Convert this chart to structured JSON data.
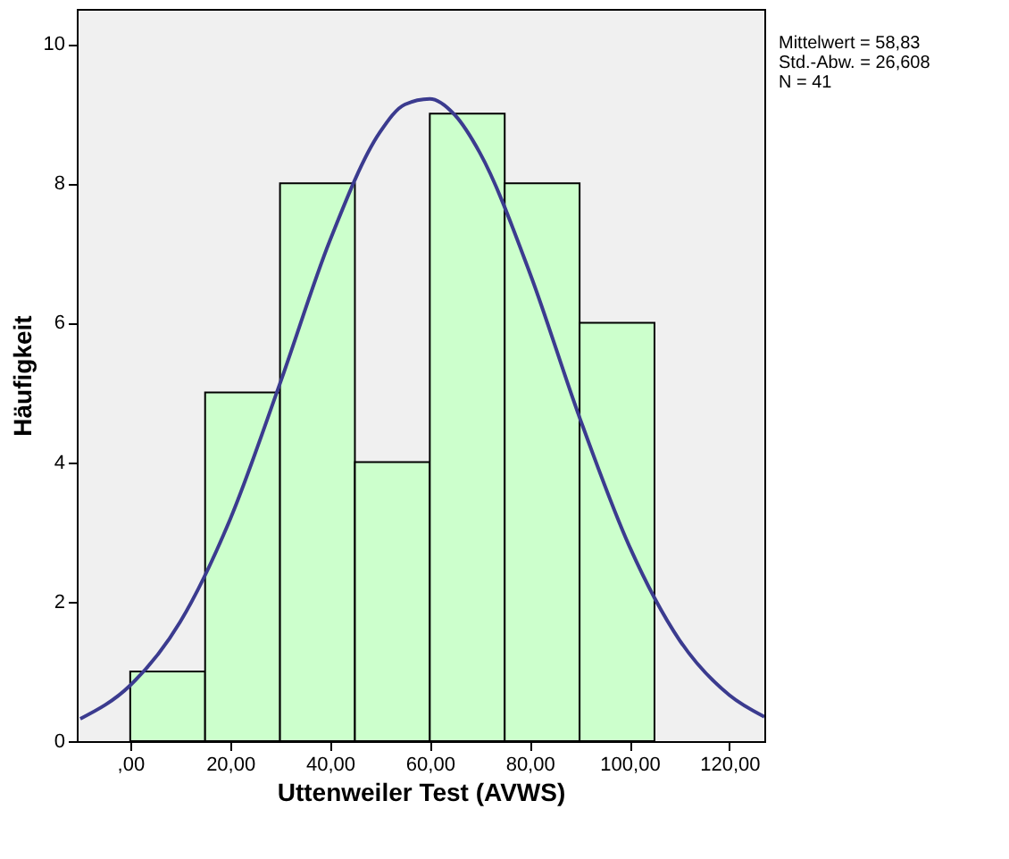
{
  "chart_data": {
    "type": "histogram",
    "xlabel": "Uttenweiler Test (AVWS)",
    "ylabel": "Häufigkeit",
    "bins": [
      0,
      15,
      30,
      45,
      60,
      75,
      90,
      105
    ],
    "values": [
      1,
      5,
      8,
      4,
      9,
      8,
      6
    ],
    "color": "#ccffcc",
    "series": [
      {
        "type": "line",
        "color": "#3b3b8f",
        "x": [
          -10,
          0,
          10,
          20,
          30,
          40,
          50,
          55,
          60,
          65,
          70,
          80,
          90,
          100,
          110,
          120,
          127
        ],
        "values": [
          0.32,
          0.8,
          1.71,
          3.18,
          5.13,
          7.18,
          8.73,
          9.13,
          9.21,
          8.98,
          8.44,
          6.72,
          4.64,
          2.79,
          1.45,
          0.66,
          0.35
        ]
      }
    ],
    "xlim": [
      -10.7,
      127
    ],
    "ylim": [
      0,
      10.5
    ],
    "xticks": [
      {
        "value": 0,
        "label": ",00"
      },
      {
        "value": 20,
        "label": "20,00"
      },
      {
        "value": 40,
        "label": "40,00"
      },
      {
        "value": 60,
        "label": "60,00"
      },
      {
        "value": 80,
        "label": "80,00"
      },
      {
        "value": 100,
        "label": "100,00"
      },
      {
        "value": 120,
        "label": "120,00"
      }
    ],
    "yticks": [
      0,
      2,
      4,
      6,
      8,
      10
    ],
    "annotations": [
      "Mittelwert = 58,83",
      "Std.-Abw. = 26,608",
      "N = 41"
    ],
    "grid": false
  }
}
